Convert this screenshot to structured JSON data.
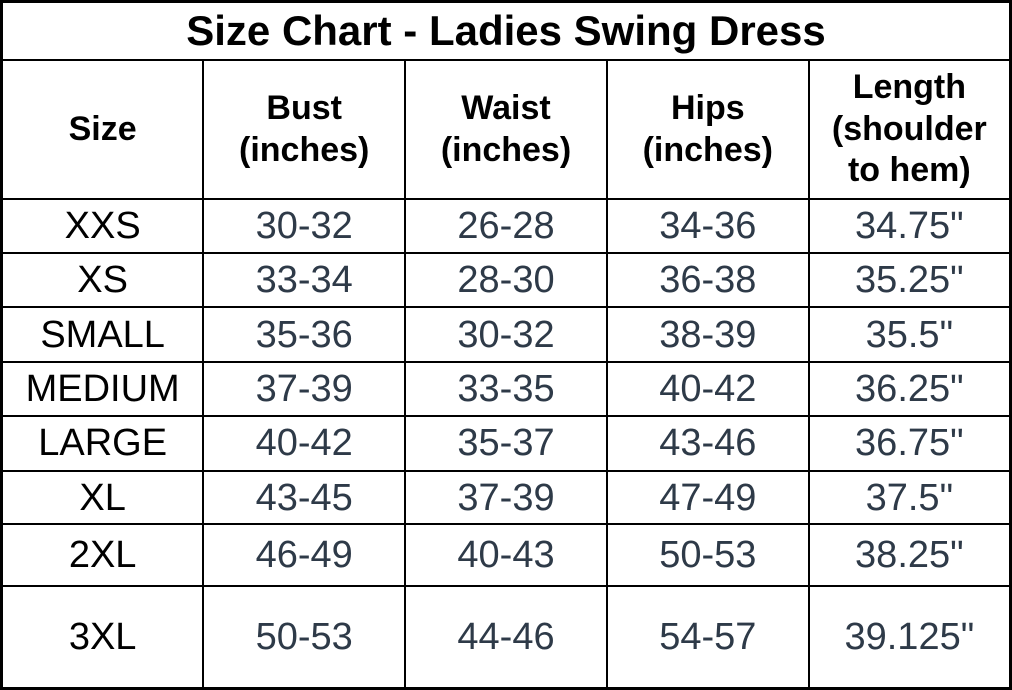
{
  "colors": {
    "background": "#ffffff",
    "border": "#000000",
    "heading_text": "#000000",
    "size_label_text": "#000000",
    "value_text": "#2e3a48"
  },
  "chart_data": {
    "type": "table",
    "title": "Size Chart - Ladies Swing Dress",
    "columns": [
      "Size",
      "Bust\n(inches)",
      "Waist\n(inches)",
      "Hips\n(inches)",
      "Length\n(shoulder\nto hem)"
    ],
    "rows": [
      {
        "size": "XXS",
        "bust": "30-32",
        "waist": "26-28",
        "hips": "34-36",
        "length": "34.75\""
      },
      {
        "size": "XS",
        "bust": "33-34",
        "waist": "28-30",
        "hips": "36-38",
        "length": "35.25\""
      },
      {
        "size": "SMALL",
        "bust": "35-36",
        "waist": "30-32",
        "hips": "38-39",
        "length": "35.5\""
      },
      {
        "size": "MEDIUM",
        "bust": "37-39",
        "waist": "33-35",
        "hips": "40-42",
        "length": "36.25\""
      },
      {
        "size": "LARGE",
        "bust": "40-42",
        "waist": "35-37",
        "hips": "43-46",
        "length": "36.75\""
      },
      {
        "size": "XL",
        "bust": "43-45",
        "waist": "37-39",
        "hips": "47-49",
        "length": "37.5\""
      },
      {
        "size": "2XL",
        "bust": "46-49",
        "waist": "40-43",
        "hips": "50-53",
        "length": "38.25\""
      },
      {
        "size": "3XL",
        "bust": "50-53",
        "waist": "44-46",
        "hips": "54-57",
        "length": "39.125\""
      }
    ]
  }
}
